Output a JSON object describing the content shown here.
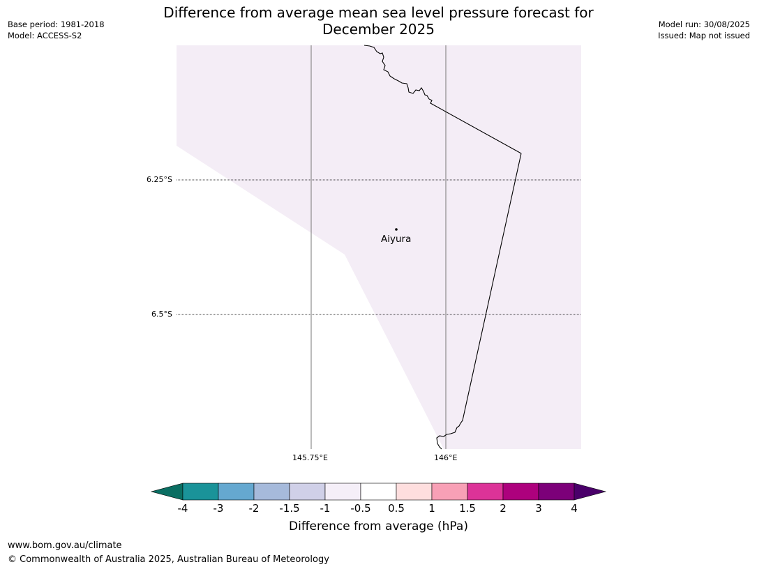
{
  "title_line1": "Difference from average mean sea level pressure forecast for",
  "title_line2": "December 2025",
  "meta_left": [
    "Base period: 1981-2018",
    "Model: ACCESS-S2"
  ],
  "meta_right": [
    "Model run: 30/08/2025",
    "Issued: Map not issued"
  ],
  "map": {
    "lat_labels": [
      "6.25°S",
      "6.5°S"
    ],
    "lon_labels": [
      "145.75°E",
      "146°E"
    ],
    "place": {
      "name": "Aiyura"
    },
    "fill_color": "#f4edf6"
  },
  "colorbar": {
    "ticks": [
      "-4",
      "-3",
      "-2",
      "-1.5",
      "-1",
      "-0.5",
      "0.5",
      "1",
      "1.5",
      "2",
      "3",
      "4"
    ],
    "colors": [
      "#0a6e62",
      "#1a9399",
      "#65a8d0",
      "#a6badb",
      "#d0d0e8",
      "#f5eff8",
      "#ffffff",
      "#fedede",
      "#f8a0b6",
      "#dc3398",
      "#ad017d",
      "#7c0079",
      "#4a006a"
    ],
    "label": "Difference from average (hPa)"
  },
  "footer": {
    "url": "www.bom.gov.au/climate",
    "copyright": "© Commonwealth of Australia 2025, Australian Bureau of Meteorology"
  }
}
